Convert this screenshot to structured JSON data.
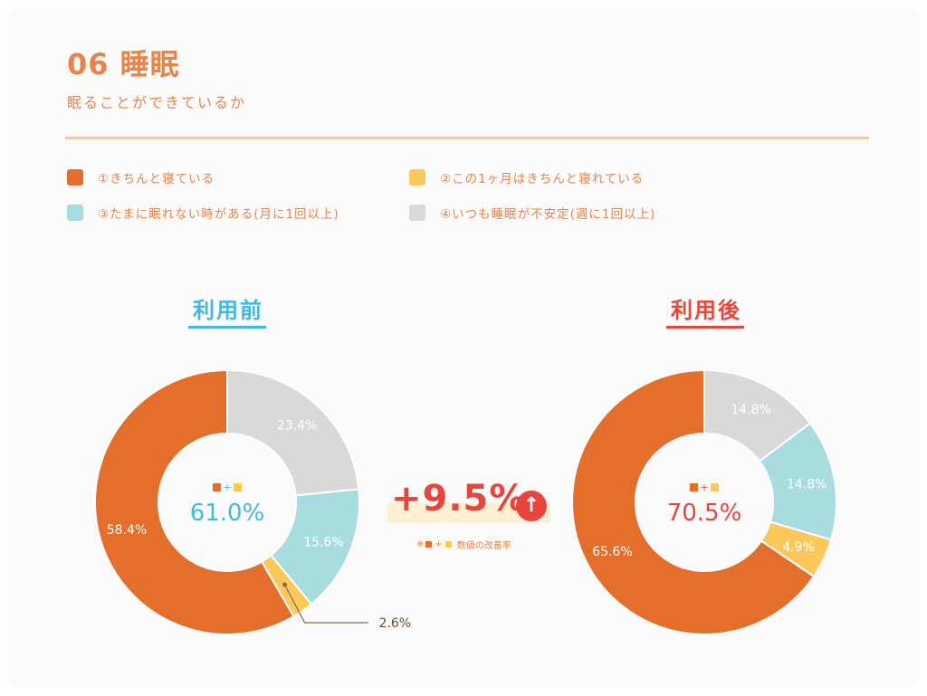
{
  "header": {
    "title": "06 睡眠",
    "subtitle": "眠ることができているか"
  },
  "colors": {
    "orange": "#e46e2c",
    "yellow": "#fbc95a",
    "teal": "#a8dcdf",
    "gray": "#d9d9d9",
    "before_accent": "#42b8e0",
    "after_accent": "#e8453c",
    "accent_text": "#e8834a"
  },
  "legend": [
    {
      "label": "①きちんと寝ている",
      "color": "#e46e2c"
    },
    {
      "label": "②この1ヶ月はきちんと寝れている",
      "color": "#fbc95a"
    },
    {
      "label": "③たまに眠れない時がある(月に1回以上)",
      "color": "#a8dcdf"
    },
    {
      "label": "④いつも睡眠が不安定(週に1回以上)",
      "color": "#d9d9d9"
    }
  ],
  "periods": {
    "before": {
      "label": "利用前",
      "center_value": "61.0%"
    },
    "after": {
      "label": "利用後",
      "center_value": "70.5%"
    }
  },
  "improvement": {
    "value": "+9.5%",
    "icon": "arrow-up-icon",
    "note_prefix": "※",
    "note_text": "数値の改善率"
  },
  "chart_data": [
    {
      "type": "pie",
      "title": "利用前",
      "categories": [
        "①きちんと寝ている",
        "②この1ヶ月はきちんと寝れている",
        "③たまに眠れない時がある(月に1回以上)",
        "④いつも睡眠が不安定(週に1回以上)"
      ],
      "values": [
        58.4,
        2.6,
        15.6,
        23.4
      ],
      "labels": [
        "58.4%",
        "2.6%",
        "15.6%",
        "23.4%"
      ],
      "center": "61.0%",
      "donut": true
    },
    {
      "type": "pie",
      "title": "利用後",
      "categories": [
        "①きちんと寝ている",
        "②この1ヶ月はきちんと寝れている",
        "③たまに眠れない時がある(月に1回以上)",
        "④いつも睡眠が不安定(週に1回以上)"
      ],
      "values": [
        65.6,
        4.9,
        14.8,
        14.8
      ],
      "labels": [
        "65.6%",
        "4.9%",
        "14.8%",
        "14.8%"
      ],
      "center": "70.5%",
      "donut": true
    }
  ]
}
